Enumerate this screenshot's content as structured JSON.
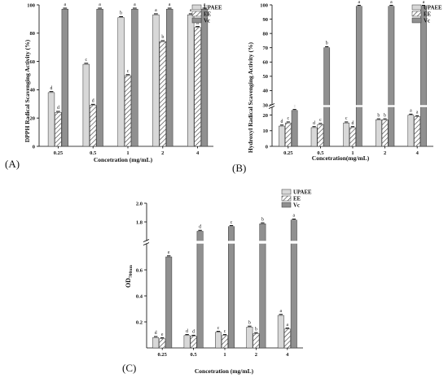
{
  "chart_data": [
    {
      "panel": "(A)",
      "type": "bar",
      "ylabel": "DPPH Radical Scavenging Activity (%)",
      "xlabel": "Concetration (mg/mL)",
      "categories": [
        "0.25",
        "0.5",
        "1",
        "2",
        "4"
      ],
      "ylim": [
        0,
        100
      ],
      "yticks": [
        "0",
        "20",
        "40",
        "60",
        "80",
        "100"
      ],
      "series": [
        {
          "name": "UPAEE",
          "values": [
            38,
            58,
            91,
            93,
            93
          ],
          "letters": [
            "d",
            "c",
            "b",
            "a",
            "a"
          ]
        },
        {
          "name": "EE",
          "values": [
            24,
            29,
            50,
            74,
            84
          ],
          "letters": [
            "d",
            "d",
            "c",
            "b",
            "a"
          ]
        },
        {
          "name": "Vc",
          "values": [
            97,
            97,
            97,
            97,
            97
          ],
          "letters": [
            "a",
            "a",
            "a",
            "a",
            "a"
          ]
        }
      ],
      "legend": "top-right"
    },
    {
      "panel": "(B)",
      "type": "bar",
      "ylabel": "Hydroxyl Radical Scavenging Activity (%)",
      "xlabel": "Concetration(mg/mL)",
      "categories": [
        "0.25",
        "0.5",
        "1",
        "2",
        "4"
      ],
      "ylim": [
        0,
        100
      ],
      "axis_break": [
        25,
        30
      ],
      "yticks": [
        "0",
        "10",
        "20",
        "30",
        "40",
        "50",
        "60",
        "70",
        "80",
        "90",
        "100"
      ],
      "series": [
        {
          "name": "UPAEE",
          "values": [
            13,
            12,
            15,
            17,
            20
          ],
          "letters": [
            "d",
            "d",
            "c",
            "b",
            "a"
          ]
        },
        {
          "name": "EE",
          "values": [
            15,
            14,
            12,
            17,
            19
          ],
          "letters": [
            "c",
            "c",
            "d",
            "b",
            "a"
          ]
        },
        {
          "name": "Vc",
          "values": [
            23,
            70,
            99,
            99,
            99
          ],
          "letters": [
            "c",
            "b",
            "a",
            "a",
            "a"
          ]
        }
      ],
      "legend": "top-right"
    },
    {
      "panel": "(C)",
      "type": "bar",
      "ylabel": "OD700nm",
      "xlabel": "Concetration (mg/mL)",
      "categories": [
        "0.25",
        "0.5",
        "1",
        "2",
        "4"
      ],
      "ylim": [
        0,
        2.0
      ],
      "axis_break": [
        0.8,
        1.6
      ],
      "yticks": [
        "0.2",
        "0.4",
        "0.6",
        "1.8",
        "2.0"
      ],
      "series": [
        {
          "name": "UPAEE",
          "values": [
            0.08,
            0.095,
            0.12,
            0.16,
            0.25
          ],
          "letters": [
            "d",
            "d",
            "c",
            "b",
            "a"
          ]
        },
        {
          "name": "EE",
          "values": [
            0.07,
            0.09,
            0.095,
            0.11,
            0.145
          ],
          "letters": [
            "e",
            "d",
            "c",
            "b",
            "a"
          ]
        },
        {
          "name": "Vc",
          "values": [
            0.7,
            1.7,
            1.75,
            1.78,
            1.82
          ],
          "letters": [
            "e",
            "d",
            "c",
            "b",
            "a"
          ]
        }
      ],
      "legend": "top-right"
    }
  ],
  "colors": {
    "UPAEE": "#d8d8d8",
    "EE": "hatched",
    "Vc": "#909090"
  }
}
